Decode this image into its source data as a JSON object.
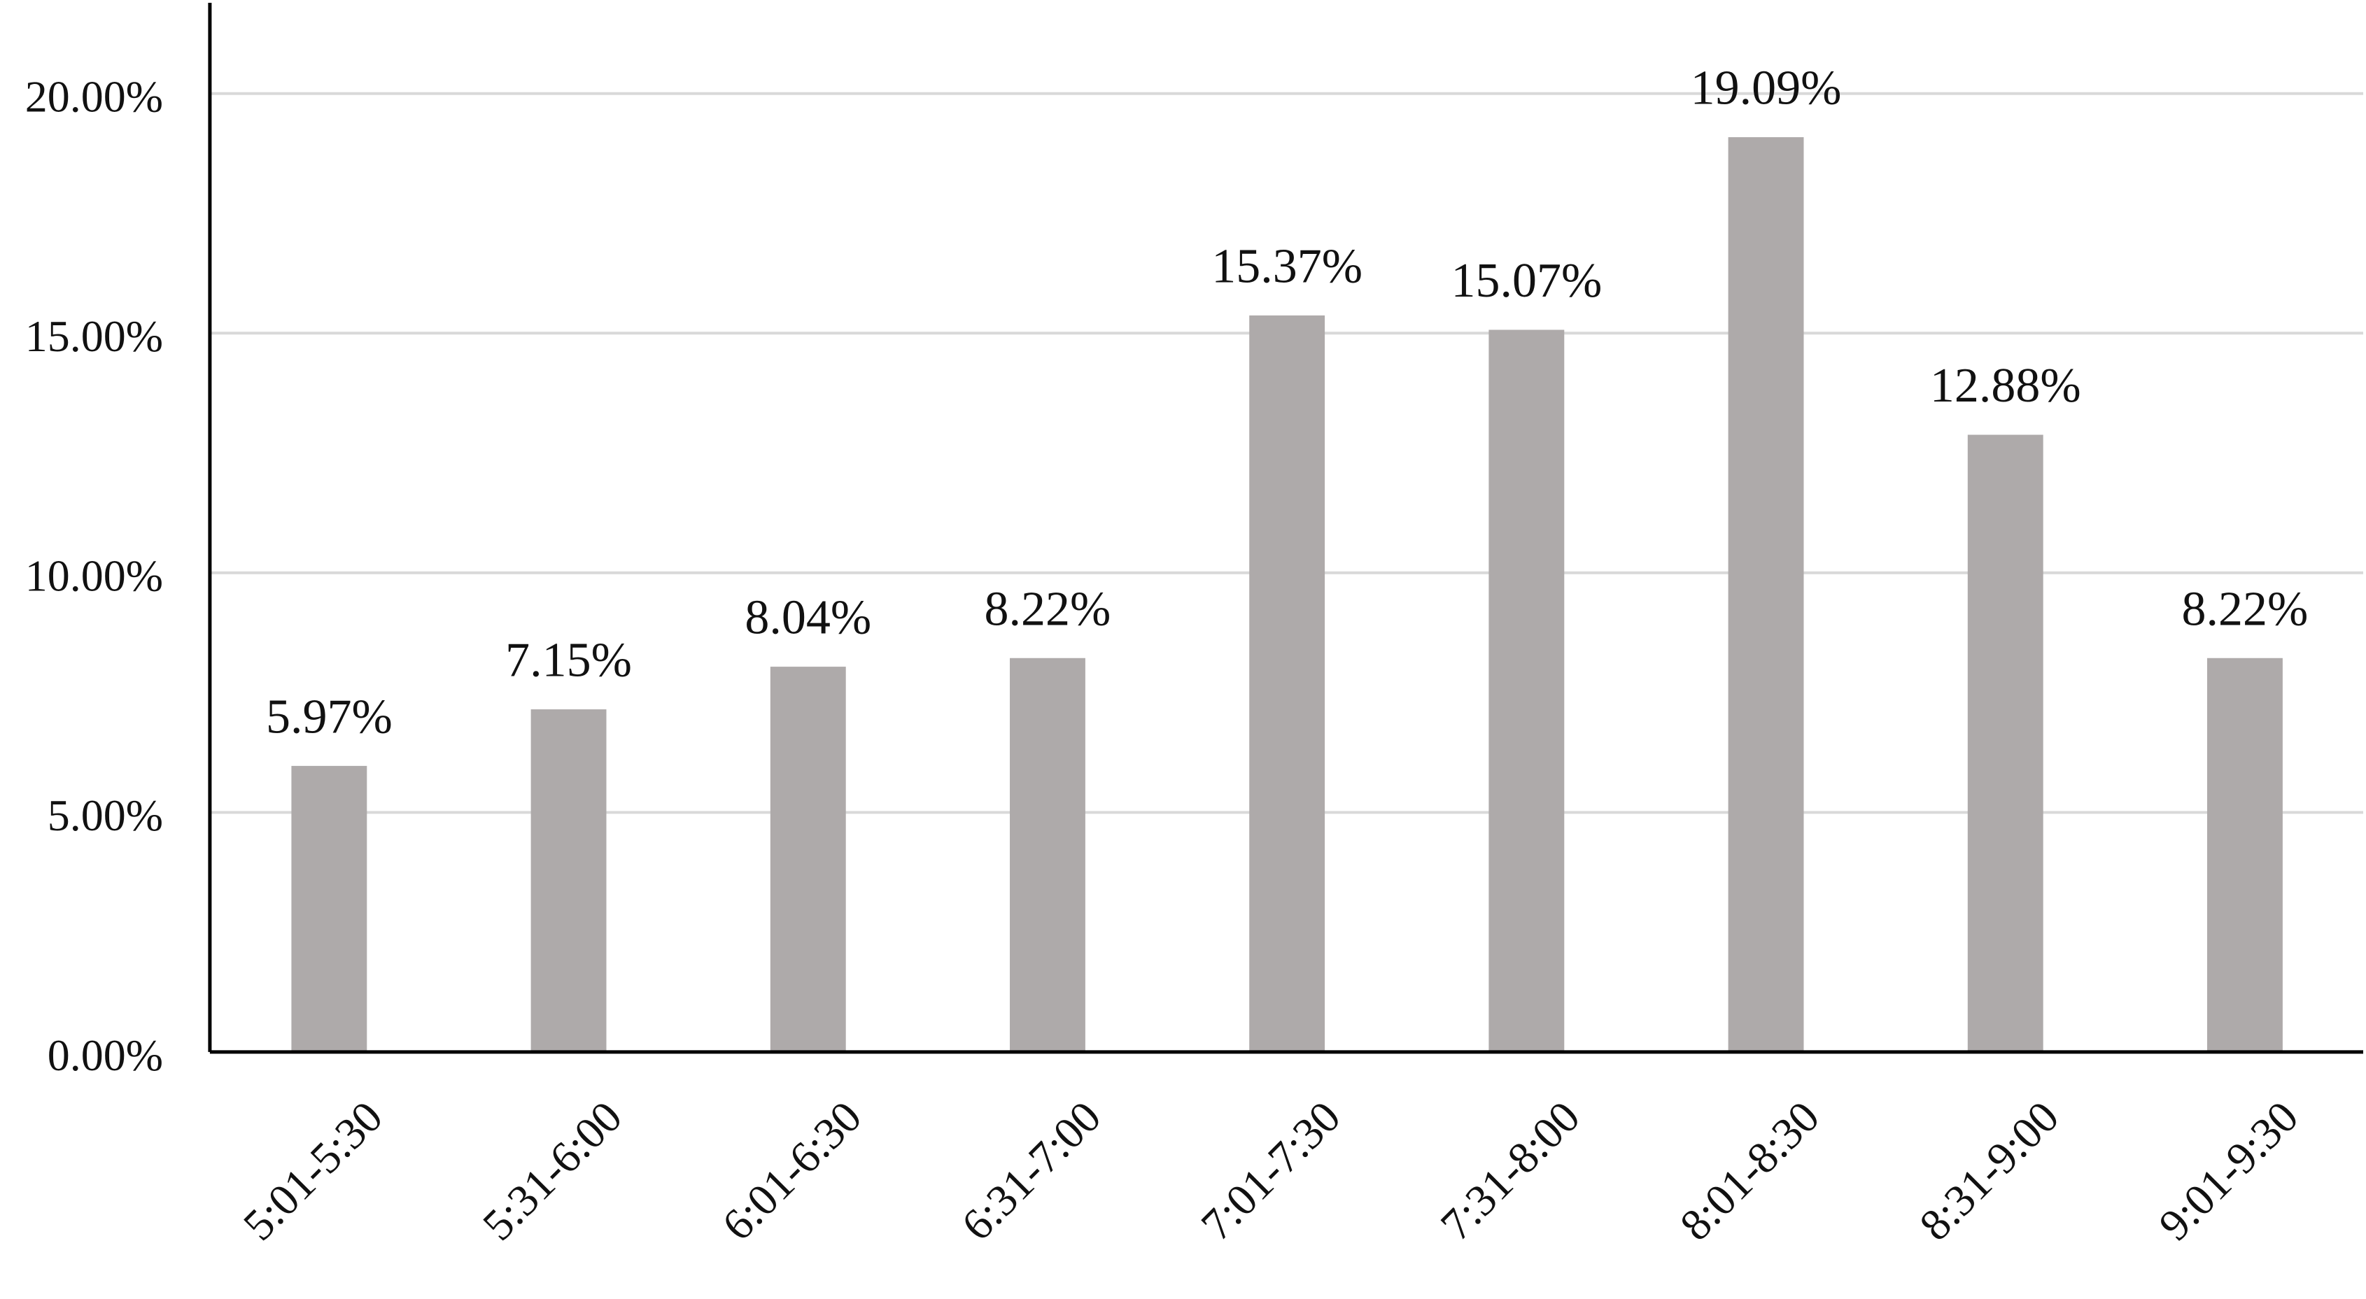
{
  "chart_data": {
    "type": "bar",
    "title": "",
    "xlabel": "",
    "ylabel": "",
    "ylim": [
      0,
      22
    ],
    "grid": true,
    "bar_color": "#aeaaaa",
    "categories": [
      "5:01-5:30",
      "5:31-6:00",
      "6:01-6:30",
      "6:31-7:00",
      "7:01-7:30",
      "7:31-8:00",
      "8:01-8:30",
      "8:31-9:00",
      "9:01-9:30"
    ],
    "values": [
      5.97,
      7.15,
      8.04,
      8.22,
      15.37,
      15.07,
      19.09,
      12.88,
      8.22
    ],
    "data_labels": [
      "5.97%",
      "7.15%",
      "8.04%",
      "8.22%",
      "15.37%",
      "15.07%",
      "19.09%",
      "12.88%",
      "8.22%"
    ],
    "y_ticks": [
      0,
      5,
      10,
      15,
      20
    ],
    "y_tick_labels": [
      "0.00%",
      "5.00%",
      "10.00%",
      "15.00%",
      "20.00%"
    ]
  }
}
